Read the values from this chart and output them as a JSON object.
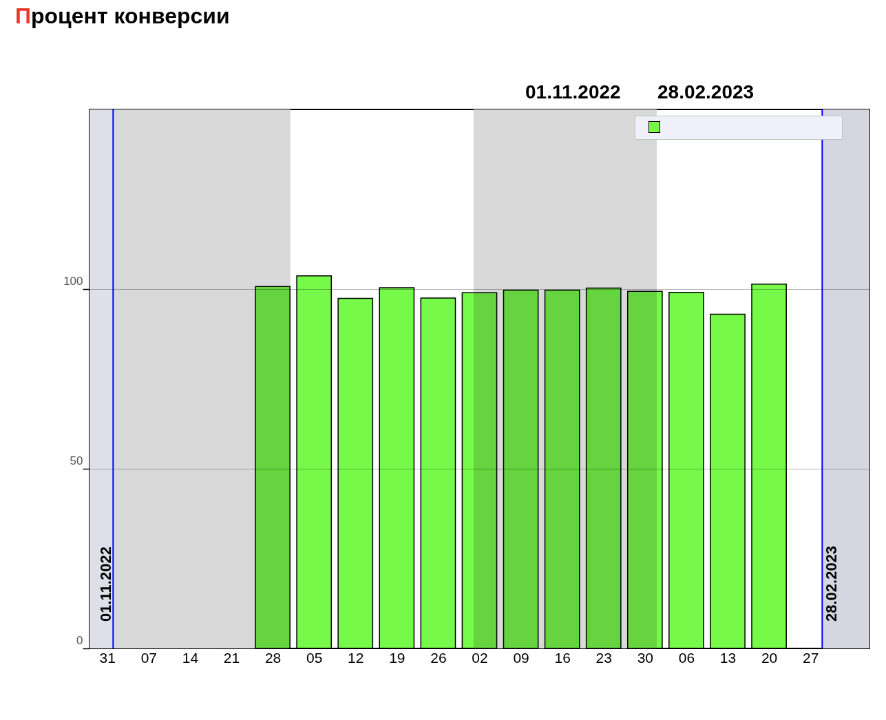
{
  "chart_data": {
    "type": "bar",
    "title": "Процент конверсии",
    "annotations": [
      "01.11.2022",
      "28.02.2023"
    ],
    "x": [
      "2022-11-28",
      "2022-12-05",
      "2022-12-12",
      "2022-12-19",
      "2022-12-26",
      "2023-01-02",
      "2023-01-09",
      "2023-01-16",
      "2023-01-23",
      "2023-01-30",
      "2023-02-06",
      "2023-02-13",
      "2023-02-20"
    ],
    "series": [
      {
        "color": "#77f94a",
        "values": [
          100.7,
          103.7,
          97.4,
          100.4,
          97.5,
          99.0,
          99.7,
          99.7,
          100.3,
          99.4,
          99.1,
          93.0,
          101.4
        ]
      }
    ],
    "xlim": [
      "2022-10-28",
      "2023-03-09"
    ],
    "xticks": [
      {
        "value": "2022-10-31",
        "label": "31"
      },
      {
        "value": "2022-11-07",
        "label": "07"
      },
      {
        "value": "2022-11-14",
        "label": "14"
      },
      {
        "value": "2022-11-21",
        "label": "21"
      },
      {
        "value": "2022-11-28",
        "label": "28"
      },
      {
        "value": "2022-12-05",
        "label": "05"
      },
      {
        "value": "2022-12-12",
        "label": "12"
      },
      {
        "value": "2022-12-19",
        "label": "19"
      },
      {
        "value": "2022-12-26",
        "label": "26"
      },
      {
        "value": "2023-01-02",
        "label": "02"
      },
      {
        "value": "2023-01-09",
        "label": "09"
      },
      {
        "value": "2023-01-16",
        "label": "16"
      },
      {
        "value": "2023-01-23",
        "label": "23"
      },
      {
        "value": "2023-01-30",
        "label": "30"
      },
      {
        "value": "2023-02-06",
        "label": "06"
      },
      {
        "value": "2023-02-13",
        "label": "13"
      },
      {
        "value": "2023-02-20",
        "label": "20"
      },
      {
        "value": "2023-02-27",
        "label": "27"
      }
    ],
    "ylim": [
      0,
      150
    ],
    "yticks": [
      0,
      50,
      100
    ],
    "grid": "y",
    "ref_lines": [
      {
        "axis": "x",
        "value": "2022-11-01",
        "label": "01.11.2022",
        "color": "#0000ff"
      },
      {
        "axis": "x",
        "value": "2023-03-01",
        "label": "28.02.2023",
        "color": "#0000ff"
      }
    ],
    "bands": [
      {
        "axis": "x",
        "from": "2022-10-28",
        "to": "2022-11-01",
        "color": "#dfdfea"
      },
      {
        "axis": "x",
        "from": "2022-11-01",
        "to": "2022-12-01",
        "color": "#d9d9d9"
      },
      {
        "axis": "x",
        "from": "2023-01-01",
        "to": "2023-02-01",
        "color": "#d9d9d9"
      },
      {
        "axis": "x",
        "from": "2023-03-01",
        "to": "2023-03-09",
        "color": "#d6d6e0"
      }
    ]
  }
}
